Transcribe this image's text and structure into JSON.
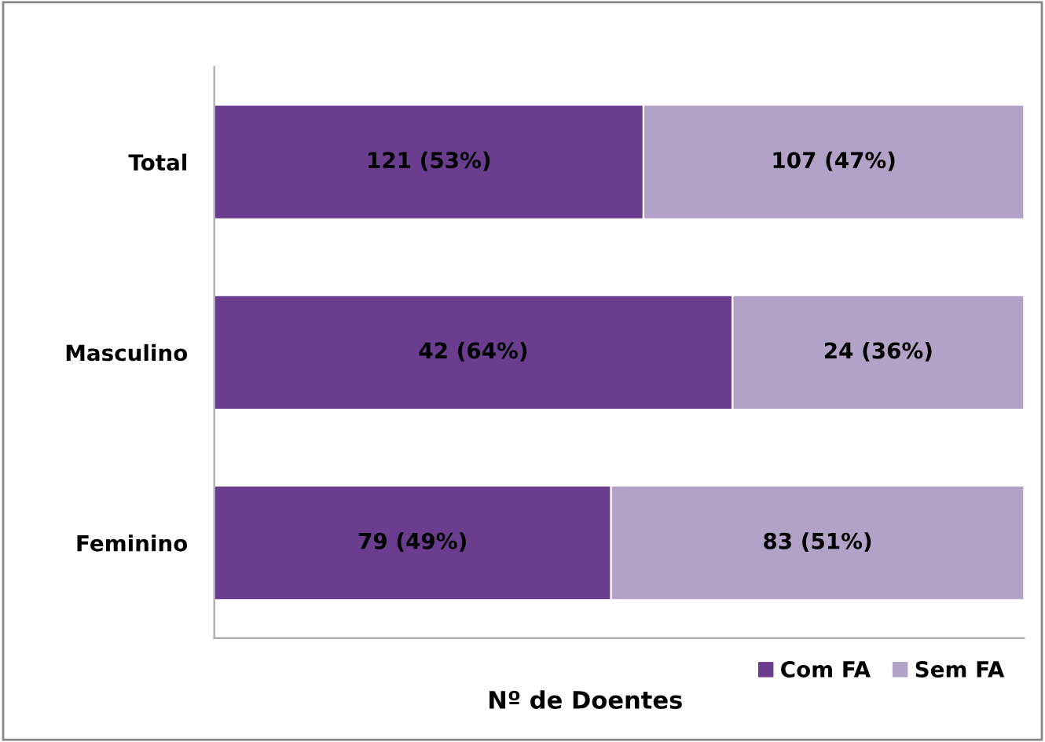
{
  "chart_data": {
    "type": "bar",
    "orientation": "horizontal",
    "stacked": true,
    "xlim": [
      0,
      100
    ],
    "tick_labels": "y",
    "xlabel": "Nº de Doentes",
    "categories": [
      "Total",
      "Masculino",
      "Feminino"
    ],
    "series": [
      {
        "name": "Com FA",
        "color": "#6a3d8e",
        "values": [
          53,
          64,
          49
        ],
        "value_labels": [
          "121 (53%)",
          "42 (64%)",
          "79 (49%)"
        ]
      },
      {
        "name": "Sem FA",
        "color": "#b3a2c7",
        "values": [
          47,
          36,
          51
        ],
        "value_labels": [
          "107 (47%)",
          "24 (36%)",
          "83 (51%)"
        ]
      }
    ],
    "legend": "bottom right",
    "grid": false
  }
}
